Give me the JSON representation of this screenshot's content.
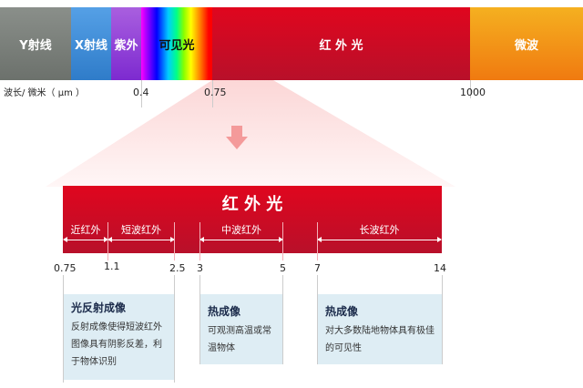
{
  "spectrum": {
    "segments": [
      {
        "label": "Y射线",
        "color": "#7c817c"
      },
      {
        "label": "X射线",
        "color": "#3f8fd8"
      },
      {
        "label": "紫外",
        "color": "#9a3fd8"
      },
      {
        "label": "可见光",
        "color": "spectrum"
      },
      {
        "label": "红 外 光",
        "color": "#d0081e"
      },
      {
        "label": "微波",
        "color": "#f29a10"
      }
    ],
    "axis_label": "波长/ 微米（ μm ）",
    "ticks": [
      "0.4",
      "0.75",
      "1000"
    ]
  },
  "infrared": {
    "title": "红 外 光",
    "bands": [
      {
        "label": "近红外"
      },
      {
        "label": "短波红外"
      },
      {
        "label": "中波红外"
      },
      {
        "label": "长波红外"
      }
    ],
    "ticks": [
      "0.75",
      "1.1",
      "2.5",
      "3",
      "5",
      "7",
      "14"
    ]
  },
  "cards": [
    {
      "title": "光反射成像",
      "text": "反射成像使得短波红外图像具有阴影反差，利于物体识别"
    },
    {
      "title": "热成像",
      "text": "可观测高温或常温物体"
    },
    {
      "title": "热成像",
      "text": "对大多数陆地物体具有极佳的可见性"
    }
  ],
  "colors": {
    "red": "#d0081e",
    "arrow": "#f49a9a",
    "card": "#deedf4"
  }
}
